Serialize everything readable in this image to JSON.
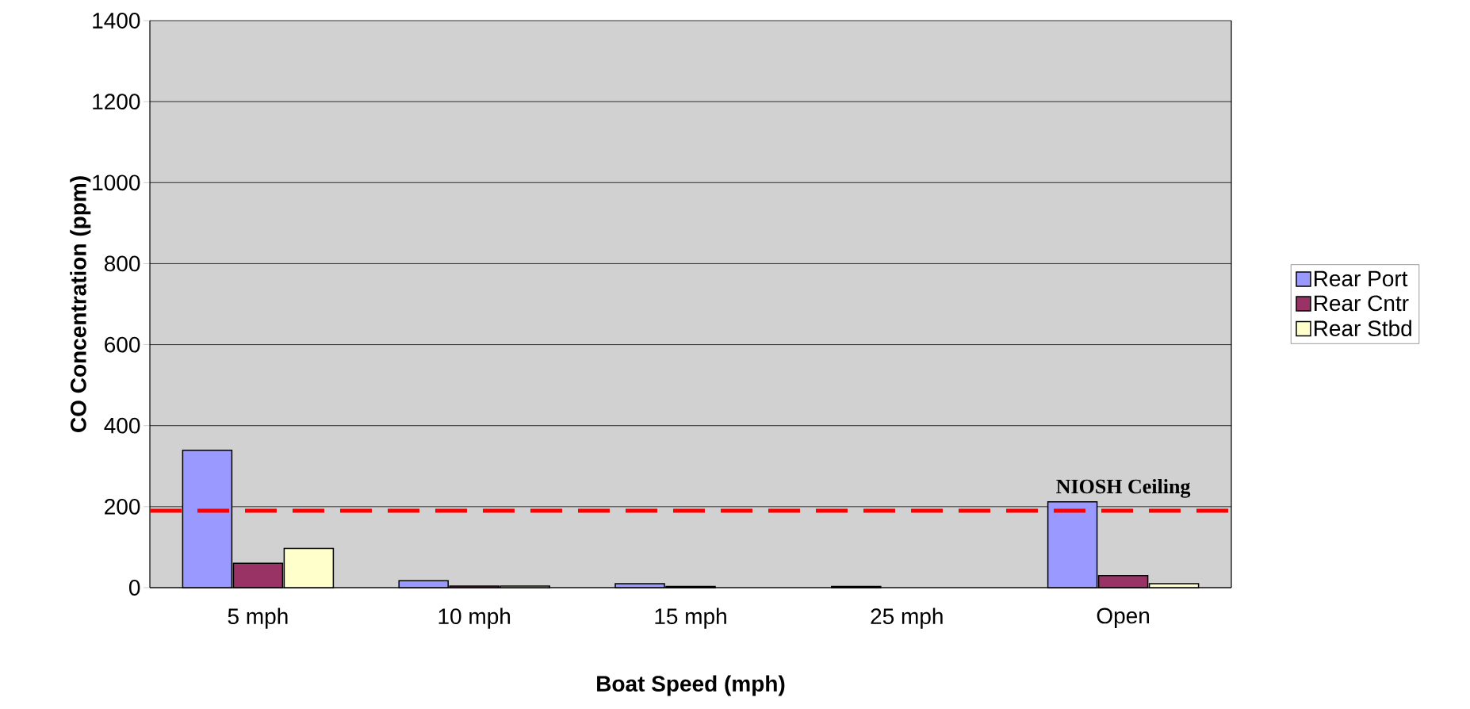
{
  "chart_data": {
    "type": "bar",
    "categories": [
      "5 mph",
      "10 mph",
      "15 mph",
      "25 mph",
      "Open"
    ],
    "series": [
      {
        "name": "Rear Port",
        "color": "#9999ff",
        "values": [
          339,
          17,
          10,
          3,
          212
        ]
      },
      {
        "name": "Rear Cntr",
        "color": "#993366",
        "values": [
          60,
          4,
          3,
          null,
          30
        ]
      },
      {
        "name": "Rear Stbd",
        "color": "#ffffcc",
        "values": [
          97,
          4,
          null,
          null,
          10
        ]
      }
    ],
    "xlabel": "Boat Speed (mph)",
    "ylabel": "CO Concentration (ppm)",
    "ylim": [
      0,
      1400
    ],
    "yticks": [
      0,
      200,
      400,
      600,
      800,
      1000,
      1200,
      1400
    ],
    "grid": "y",
    "legend": "right",
    "ref_lines": [
      {
        "axis": "y",
        "value": 190,
        "label": "NIOSH Ceiling",
        "color": "#ff0000",
        "line_style": "dashed"
      }
    ]
  }
}
